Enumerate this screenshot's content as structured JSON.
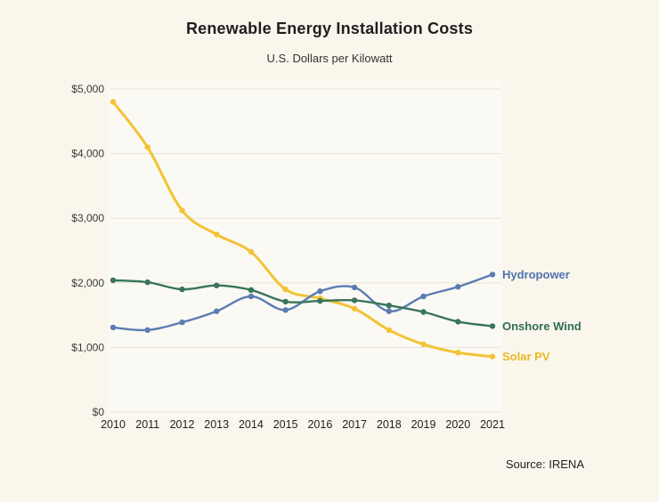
{
  "chart_data": {
    "type": "line",
    "title": "Renewable Energy Installation Costs",
    "subtitle": "U.S. Dollars per Kilowatt",
    "source": "Source: IRENA",
    "x": [
      2010,
      2011,
      2012,
      2013,
      2014,
      2015,
      2016,
      2017,
      2018,
      2019,
      2020,
      2021
    ],
    "ylim": [
      0,
      5000
    ],
    "ytick_step": 1000,
    "ytick_labels": [
      "$0",
      "$1,000",
      "$2,000",
      "$3,000",
      "$4,000",
      "$5,000"
    ],
    "grid": true,
    "legend_position": "end-of-line-labels",
    "series": [
      {
        "name": "Solar PV",
        "color": "#f2c335",
        "label_color": "#e6ba27",
        "stroke_width": 3,
        "values": [
          4800,
          4100,
          3120,
          2750,
          2480,
          1900,
          1760,
          1600,
          1270,
          1050,
          920,
          860
        ]
      },
      {
        "name": "Hydropower",
        "color": "#5b7cb4",
        "label_color": "#4f72ad",
        "stroke_width": 2.4,
        "values": [
          1310,
          1270,
          1390,
          1560,
          1790,
          1580,
          1870,
          1930,
          1560,
          1790,
          1940,
          2130
        ]
      },
      {
        "name": "Onshore Wind",
        "color": "#38755b",
        "label_color": "#2f6e52",
        "stroke_width": 2.4,
        "values": [
          2040,
          2010,
          1900,
          1960,
          1890,
          1710,
          1720,
          1730,
          1650,
          1550,
          1400,
          1330
        ]
      }
    ],
    "colors": {
      "background": "#faf6ec",
      "plot_background": "#fbf9f3",
      "gridline": "#e7e3d6",
      "tick_text": "#3a3a3a",
      "x_tick_text": "#222222"
    }
  }
}
